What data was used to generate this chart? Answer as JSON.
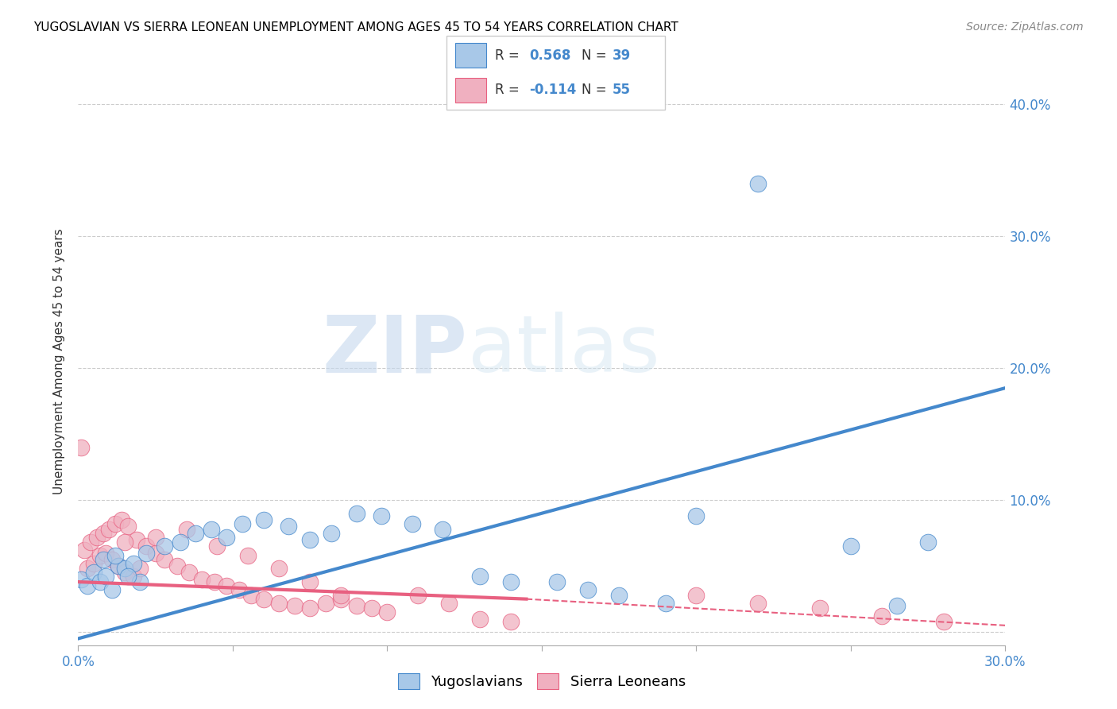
{
  "title": "YUGOSLAVIAN VS SIERRA LEONEAN UNEMPLOYMENT AMONG AGES 45 TO 54 YEARS CORRELATION CHART",
  "source": "Source: ZipAtlas.com",
  "ylabel": "Unemployment Among Ages 45 to 54 years",
  "xlim": [
    0.0,
    0.3
  ],
  "ylim": [
    -0.01,
    0.42
  ],
  "xticks": [
    0.0,
    0.05,
    0.1,
    0.15,
    0.2,
    0.25,
    0.3
  ],
  "yticks": [
    0.0,
    0.1,
    0.2,
    0.3,
    0.4
  ],
  "right_ytick_labels": [
    "",
    "10.0%",
    "20.0%",
    "30.0%",
    "40.0%"
  ],
  "xtick_labels": [
    "0.0%",
    "",
    "",
    "",
    "",
    "",
    "30.0%"
  ],
  "yugoslavian_color": "#a8c8e8",
  "sierra_leonean_color": "#f0b0c0",
  "trend_yugo_color": "#4488cc",
  "trend_sierra_color": "#e86080",
  "R_yugo": 0.568,
  "N_yugo": 39,
  "R_sierra": -0.114,
  "N_sierra": 55,
  "watermark_zip": "ZIP",
  "watermark_atlas": "atlas",
  "yugo_points_x": [
    0.001,
    0.003,
    0.005,
    0.007,
    0.009,
    0.011,
    0.013,
    0.015,
    0.018,
    0.02,
    0.008,
    0.012,
    0.016,
    0.022,
    0.028,
    0.033,
    0.038,
    0.043,
    0.048,
    0.053,
    0.06,
    0.068,
    0.075,
    0.082,
    0.09,
    0.098,
    0.108,
    0.118,
    0.13,
    0.14,
    0.155,
    0.165,
    0.175,
    0.19,
    0.2,
    0.22,
    0.25,
    0.265,
    0.275
  ],
  "yugo_points_y": [
    0.04,
    0.035,
    0.045,
    0.038,
    0.042,
    0.032,
    0.05,
    0.048,
    0.052,
    0.038,
    0.055,
    0.058,
    0.042,
    0.06,
    0.065,
    0.068,
    0.075,
    0.078,
    0.072,
    0.082,
    0.085,
    0.08,
    0.07,
    0.075,
    0.09,
    0.088,
    0.082,
    0.078,
    0.042,
    0.038,
    0.038,
    0.032,
    0.028,
    0.022,
    0.088,
    0.34,
    0.065,
    0.02,
    0.068
  ],
  "sierra_points_x": [
    0.001,
    0.003,
    0.005,
    0.007,
    0.009,
    0.011,
    0.013,
    0.015,
    0.018,
    0.02,
    0.002,
    0.004,
    0.006,
    0.008,
    0.01,
    0.012,
    0.014,
    0.016,
    0.019,
    0.022,
    0.025,
    0.028,
    0.032,
    0.036,
    0.04,
    0.044,
    0.048,
    0.052,
    0.056,
    0.06,
    0.065,
    0.07,
    0.075,
    0.08,
    0.085,
    0.09,
    0.095,
    0.1,
    0.11,
    0.12,
    0.13,
    0.14,
    0.015,
    0.025,
    0.035,
    0.045,
    0.055,
    0.065,
    0.075,
    0.085,
    0.2,
    0.22,
    0.24,
    0.26,
    0.28
  ],
  "sierra_points_y": [
    0.14,
    0.048,
    0.052,
    0.058,
    0.06,
    0.055,
    0.05,
    0.045,
    0.042,
    0.048,
    0.062,
    0.068,
    0.072,
    0.075,
    0.078,
    0.082,
    0.085,
    0.08,
    0.07,
    0.065,
    0.06,
    0.055,
    0.05,
    0.045,
    0.04,
    0.038,
    0.035,
    0.032,
    0.028,
    0.025,
    0.022,
    0.02,
    0.018,
    0.022,
    0.025,
    0.02,
    0.018,
    0.015,
    0.028,
    0.022,
    0.01,
    0.008,
    0.068,
    0.072,
    0.078,
    0.065,
    0.058,
    0.048,
    0.038,
    0.028,
    0.028,
    0.022,
    0.018,
    0.012,
    0.008
  ],
  "trend_yugo_x0": 0.0,
  "trend_yugo_x1": 0.3,
  "trend_yugo_y0": -0.005,
  "trend_yugo_y1": 0.185,
  "trend_sierra_solid_x0": 0.0,
  "trend_sierra_solid_x1": 0.145,
  "trend_sierra_solid_y0": 0.038,
  "trend_sierra_solid_y1": 0.025,
  "trend_sierra_dash_x0": 0.145,
  "trend_sierra_dash_x1": 0.3,
  "trend_sierra_dash_y0": 0.025,
  "trend_sierra_dash_y1": 0.005
}
